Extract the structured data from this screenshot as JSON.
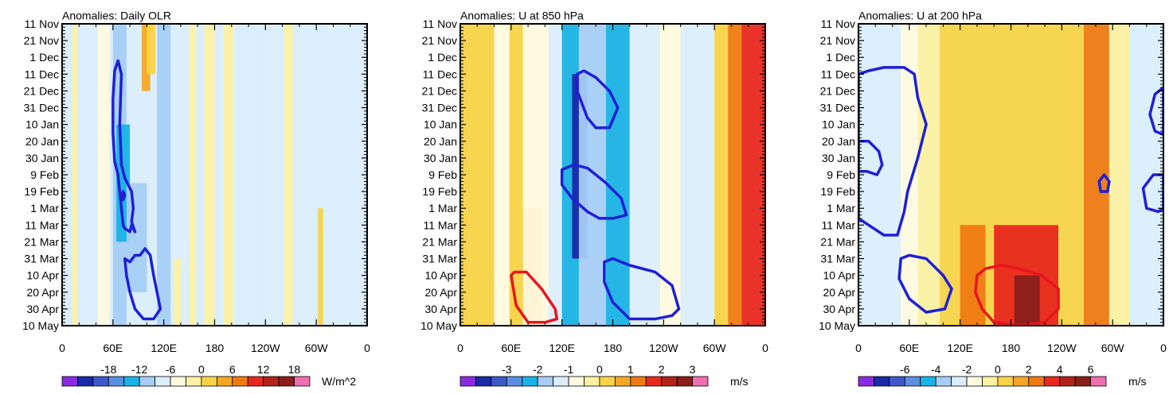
{
  "colors": {
    "frame": "#000000",
    "negative_contour": "#1f1fd6",
    "positive_contour": "#e8141e",
    "palette": [
      "#8a2be2",
      "#1a2aa8",
      "#3f58cc",
      "#5a8ee0",
      "#19b2e6",
      "#a6cdf5",
      "#dbeefc",
      "#fffadf",
      "#fdf1a3",
      "#f8d347",
      "#f5a623",
      "#ef7a12",
      "#e8281e",
      "#b0241a",
      "#8a1f1a",
      "#ef6fb0"
    ]
  },
  "chart_data": [
    {
      "type": "hovmoller",
      "title": "Anomalies: Daily OLR",
      "units": "W/m^2",
      "xlabel": "",
      "ylabel": "",
      "x_tick_labels": [
        "0",
        "60E",
        "120E",
        "180",
        "120W",
        "60W",
        "0"
      ],
      "y_tick_labels": [
        "11 Nov",
        "21 Nov",
        "1 Dec",
        "11 Dec",
        "21 Dec",
        "31 Dec",
        "10 Jan",
        "20 Jan",
        "30 Jan",
        "9 Feb",
        "19 Feb",
        "1 Mar",
        "11 Mar",
        "21 Mar",
        "31 Mar",
        "10 Apr",
        "20 Apr",
        "30 Apr",
        "10 May"
      ],
      "colorbar_labels": [
        "-18",
        "-12",
        "-6",
        "0",
        "6",
        "12",
        "18"
      ],
      "xlim": [
        0,
        360
      ],
      "ylim_days": [
        0,
        180
      ],
      "shading_bands": [
        {
          "lon": [
            12,
            18
          ],
          "value": 2
        },
        {
          "lon": [
            22,
            34
          ],
          "value": -2
        },
        {
          "lon": [
            42,
            56
          ],
          "value": 0
        },
        {
          "lon": [
            60,
            76
          ],
          "value": -5
        },
        {
          "lon": [
            64,
            80
          ],
          "value": -9,
          "days": [
            60,
            130
          ]
        },
        {
          "lon": [
            76,
            100
          ],
          "value": -4,
          "days": [
            95,
            160
          ]
        },
        {
          "lon": [
            94,
            104
          ],
          "value": 7,
          "days": [
            0,
            40
          ]
        },
        {
          "lon": [
            100,
            110
          ],
          "value": 5,
          "days": [
            0,
            30
          ]
        },
        {
          "lon": [
            112,
            128
          ],
          "value": -4
        },
        {
          "lon": [
            132,
            140
          ],
          "value": 3,
          "days": [
            140,
            180
          ]
        },
        {
          "lon": [
            140,
            148
          ],
          "value": -3,
          "days": [
            130,
            180
          ]
        },
        {
          "lon": [
            150,
            158
          ],
          "value": 2
        },
        {
          "lon": [
            168,
            180
          ],
          "value": 3
        },
        {
          "lon": [
            190,
            202
          ],
          "value": 2
        },
        {
          "lon": [
            214,
            226
          ],
          "value": -2
        },
        {
          "lon": [
            244,
            256
          ],
          "value": -2
        },
        {
          "lon": [
            262,
            272
          ],
          "value": 2
        },
        {
          "lon": [
            280,
            298
          ],
          "value": -3
        },
        {
          "lon": [
            302,
            308
          ],
          "value": 5,
          "days": [
            110,
            180
          ]
        },
        {
          "lon": [
            312,
            360
          ],
          "value": -2
        }
      ],
      "contours": [
        {
          "sign": "negative",
          "points": [
            [
              60,
              65
            ],
            [
              62,
              82
            ],
            [
              66,
              90
            ],
            [
              70,
              110
            ],
            [
              72,
              120
            ],
            [
              74,
              122
            ],
            [
              80,
              124
            ],
            [
              82,
              120
            ],
            [
              86,
              124
            ],
            [
              82,
              118
            ],
            [
              84,
              110
            ],
            [
              82,
              100
            ],
            [
              74,
              92
            ],
            [
              70,
              84
            ],
            [
              68,
              60
            ],
            [
              70,
              30
            ],
            [
              66,
              22
            ],
            [
              62,
              28
            ],
            [
              60,
              45
            ]
          ]
        },
        {
          "sign": "negative",
          "points": [
            [
              70,
              103
            ],
            [
              72,
              105
            ],
            [
              74,
              102
            ],
            [
              72,
              100
            ]
          ]
        },
        {
          "sign": "negative",
          "points": [
            [
              74,
              140
            ],
            [
              76,
              150
            ],
            [
              80,
              160
            ],
            [
              86,
              170
            ],
            [
              96,
              176
            ],
            [
              108,
              176
            ],
            [
              116,
              170
            ],
            [
              112,
              160
            ],
            [
              108,
              150
            ],
            [
              104,
              138
            ],
            [
              98,
              134
            ],
            [
              92,
              138
            ],
            [
              86,
              138
            ],
            [
              80,
              142
            ]
          ]
        }
      ]
    },
    {
      "type": "hovmoller",
      "title": "Anomalies: U at 850 hPa",
      "units": "m/s",
      "xlabel": "",
      "ylabel": "",
      "x_tick_labels": [
        "0",
        "60E",
        "120E",
        "180",
        "120W",
        "60W",
        "0"
      ],
      "y_tick_labels": [
        "11 Nov",
        "21 Nov",
        "1 Dec",
        "11 Dec",
        "21 Dec",
        "31 Dec",
        "10 Jan",
        "20 Jan",
        "30 Jan",
        "9 Feb",
        "19 Feb",
        "1 Mar",
        "11 Mar",
        "21 Mar",
        "31 Mar",
        "10 Apr",
        "20 Apr",
        "30 Apr",
        "10 May"
      ],
      "colorbar_labels": [
        "-3",
        "-2",
        "-1",
        "0",
        "1",
        "2",
        "3"
      ],
      "xlim": [
        0,
        360
      ],
      "ylim_days": [
        0,
        180
      ],
      "shading_bands": [
        {
          "lon": [
            0,
            40
          ],
          "value": 1
        },
        {
          "lon": [
            40,
            58
          ],
          "value": 0
        },
        {
          "lon": [
            58,
            74
          ],
          "value": 1
        },
        {
          "lon": [
            74,
            96
          ],
          "value": 1.5,
          "days": [
            110,
            180
          ]
        },
        {
          "lon": [
            74,
            104
          ],
          "value": 0
        },
        {
          "lon": [
            104,
            120
          ],
          "value": -0.5
        },
        {
          "lon": [
            120,
            140
          ],
          "value": -1.5
        },
        {
          "lon": [
            132,
            150
          ],
          "value": -2.5,
          "days": [
            30,
            140
          ]
        },
        {
          "lon": [
            140,
            172
          ],
          "value": -1
        },
        {
          "lon": [
            172,
            200
          ],
          "value": -1.5
        },
        {
          "lon": [
            200,
            236
          ],
          "value": -0.5
        },
        {
          "lon": [
            236,
            260
          ],
          "value": 0
        },
        {
          "lon": [
            260,
            300
          ],
          "value": -0.5
        },
        {
          "lon": [
            300,
            316
          ],
          "value": 1
        },
        {
          "lon": [
            316,
            332
          ],
          "value": 1.5
        },
        {
          "lon": [
            332,
            360
          ],
          "value": 2
        }
      ],
      "contours": [
        {
          "sign": "negative",
          "points": [
            [
              138,
              30
            ],
            [
              146,
              28
            ],
            [
              160,
              32
            ],
            [
              176,
              40
            ],
            [
              186,
              50
            ],
            [
              176,
              62
            ],
            [
              160,
              62
            ],
            [
              150,
              56
            ],
            [
              138,
              40
            ]
          ]
        },
        {
          "sign": "negative",
          "points": [
            [
              120,
              87
            ],
            [
              134,
              84
            ],
            [
              150,
              86
            ],
            [
              170,
              94
            ],
            [
              190,
              104
            ],
            [
              196,
              114
            ],
            [
              180,
              116
            ],
            [
              164,
              116
            ],
            [
              150,
              112
            ],
            [
              132,
              104
            ],
            [
              120,
              96
            ]
          ]
        },
        {
          "sign": "negative",
          "points": [
            [
              170,
              142
            ],
            [
              180,
              140
            ],
            [
              200,
              144
            ],
            [
              230,
              148
            ],
            [
              250,
              156
            ],
            [
              258,
              170
            ],
            [
              250,
              174
            ],
            [
              230,
              176
            ],
            [
              200,
              176
            ],
            [
              180,
              166
            ],
            [
              170,
              154
            ]
          ]
        },
        {
          "sign": "positive",
          "points": [
            [
              60,
              150
            ],
            [
              64,
              148
            ],
            [
              78,
              148
            ],
            [
              96,
              158
            ],
            [
              112,
              170
            ],
            [
              114,
              176
            ],
            [
              100,
              178
            ],
            [
              80,
              178
            ],
            [
              66,
              168
            ]
          ]
        }
      ]
    },
    {
      "type": "hovmoller",
      "title": "Anomalies: U at 200 hPa",
      "units": "m/s",
      "xlabel": "",
      "ylabel": "",
      "x_tick_labels": [
        "0",
        "60E",
        "120E",
        "180",
        "120W",
        "60W",
        "0"
      ],
      "y_tick_labels": [
        "11 Nov",
        "21 Nov",
        "1 Dec",
        "11 Dec",
        "21 Dec",
        "31 Dec",
        "10 Jan",
        "20 Jan",
        "30 Jan",
        "9 Feb",
        "19 Feb",
        "1 Mar",
        "11 Mar",
        "21 Mar",
        "31 Mar",
        "10 Apr",
        "20 Apr",
        "30 Apr",
        "10 May"
      ],
      "colorbar_labels": [
        "-6",
        "-4",
        "-2",
        "0",
        "2",
        "4",
        "6"
      ],
      "xlim": [
        0,
        360
      ],
      "ylim_days": [
        0,
        180
      ],
      "shading_bands": [
        {
          "lon": [
            0,
            20
          ],
          "value": -1
        },
        {
          "lon": [
            20,
            50
          ],
          "value": -0.5
        },
        {
          "lon": [
            50,
            70
          ],
          "value": 0
        },
        {
          "lon": [
            70,
            96
          ],
          "value": 1
        },
        {
          "lon": [
            96,
            150
          ],
          "value": 2
        },
        {
          "lon": [
            120,
            150
          ],
          "value": 3,
          "days": [
            120,
            180
          ]
        },
        {
          "lon": [
            150,
            236
          ],
          "value": 2
        },
        {
          "lon": [
            160,
            236
          ],
          "value": 4,
          "days": [
            120,
            180
          ]
        },
        {
          "lon": [
            184,
            214
          ],
          "value": 6,
          "days": [
            150,
            180
          ]
        },
        {
          "lon": [
            236,
            266
          ],
          "value": 2
        },
        {
          "lon": [
            266,
            296
          ],
          "value": 3
        },
        {
          "lon": [
            296,
            320
          ],
          "value": 0.5
        },
        {
          "lon": [
            320,
            360
          ],
          "value": -1
        }
      ],
      "contours": [
        {
          "sign": "negative",
          "points": [
            [
              0,
              30
            ],
            [
              12,
              28
            ],
            [
              30,
              26
            ],
            [
              54,
              26
            ],
            [
              66,
              30
            ],
            [
              70,
              44
            ],
            [
              80,
              60
            ],
            [
              70,
              80
            ],
            [
              58,
              100
            ],
            [
              54,
              112
            ],
            [
              46,
              126
            ],
            [
              30,
              126
            ],
            [
              12,
              120
            ],
            [
              0,
              116
            ]
          ]
        },
        {
          "sign": "negative",
          "points": [
            [
              0,
              70
            ],
            [
              12,
              70
            ],
            [
              24,
              76
            ],
            [
              28,
              84
            ],
            [
              22,
              90
            ],
            [
              10,
              88
            ],
            [
              0,
              88
            ]
          ]
        },
        {
          "sign": "negative",
          "points": [
            [
              50,
              140
            ],
            [
              60,
              138
            ],
            [
              80,
              140
            ],
            [
              100,
              150
            ],
            [
              110,
              158
            ],
            [
              102,
              170
            ],
            [
              80,
              172
            ],
            [
              60,
              164
            ],
            [
              48,
              152
            ]
          ]
        },
        {
          "sign": "negative",
          "points": [
            [
              284,
              94
            ],
            [
              290,
              90
            ],
            [
              296,
              94
            ],
            [
              294,
              100
            ],
            [
              286,
              100
            ]
          ]
        },
        {
          "sign": "negative",
          "points": [
            [
              360,
              90
            ],
            [
              348,
              90
            ],
            [
              336,
              98
            ],
            [
              340,
              110
            ],
            [
              354,
              112
            ],
            [
              360,
              110
            ]
          ]
        },
        {
          "sign": "negative",
          "points": [
            [
              360,
              38
            ],
            [
              350,
              42
            ],
            [
              344,
              54
            ],
            [
              350,
              64
            ],
            [
              360,
              66
            ]
          ]
        },
        {
          "sign": "positive",
          "points": [
            [
              140,
              150
            ],
            [
              150,
              146
            ],
            [
              168,
              144
            ],
            [
              190,
              146
            ],
            [
              216,
              150
            ],
            [
              236,
              158
            ],
            [
              236,
              170
            ],
            [
              220,
              178
            ],
            [
              190,
              180
            ],
            [
              160,
              178
            ],
            [
              146,
              170
            ],
            [
              138,
              160
            ]
          ]
        }
      ]
    }
  ]
}
